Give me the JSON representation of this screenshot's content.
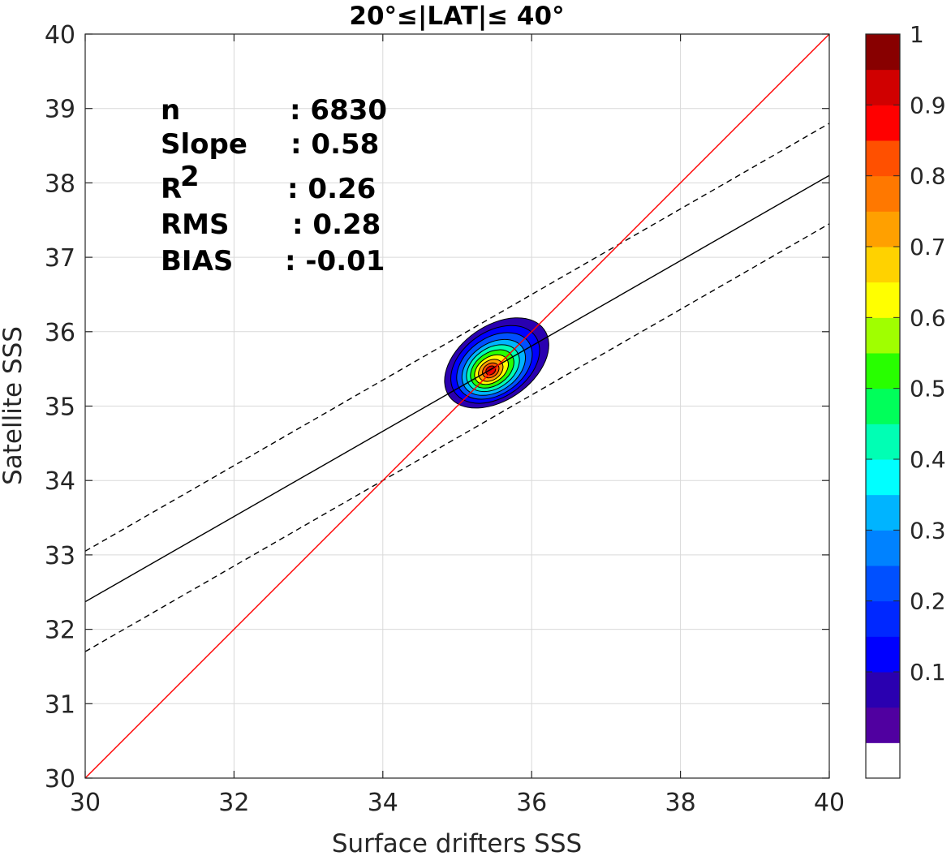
{
  "chart_data": {
    "type": "contour",
    "title": "20°≤|LAT|≤ 40°",
    "xlabel": "Surface drifters SSS",
    "ylabel": "Satellite SSS",
    "xlim": [
      30,
      40
    ],
    "ylim": [
      30,
      40
    ],
    "xticks": [
      "30",
      "32",
      "34",
      "36",
      "38",
      "40"
    ],
    "yticks": [
      "30",
      "31",
      "32",
      "33",
      "34",
      "35",
      "36",
      "37",
      "38",
      "39",
      "40"
    ],
    "grid": true,
    "stats": [
      {
        "label": "n",
        "value": ": 6830"
      },
      {
        "label": "Slope",
        "value": ": 0.58"
      },
      {
        "label": "R",
        "sup": "2",
        "value": ": 0.26"
      },
      {
        "label": "RMS",
        "value": ": 0.28"
      },
      {
        "label": "BIAS",
        "value": ": -0.01"
      }
    ],
    "lines": {
      "one_to_one": {
        "color": "#ff0000",
        "x": [
          30,
          40
        ],
        "y": [
          30,
          40
        ]
      },
      "fit": {
        "color": "#000000",
        "style": "solid",
        "x": [
          30,
          40
        ],
        "y": [
          32.37,
          38.1
        ]
      },
      "fit_upper": {
        "color": "#000000",
        "style": "dashed",
        "x": [
          30,
          40
        ],
        "y": [
          33.05,
          38.8
        ]
      },
      "fit_lower": {
        "color": "#000000",
        "style": "dashed",
        "x": [
          30,
          40
        ],
        "y": [
          31.7,
          37.45
        ]
      }
    },
    "density_contours": {
      "center": [
        35.45,
        35.48
      ],
      "rotation_deg": 35,
      "levels": [
        {
          "level": 0.05,
          "color": "#2a00b0",
          "a": 0.78,
          "b": 0.5,
          "dx": 0.08,
          "dy": 0.1
        },
        {
          "level": 0.1,
          "color": "#0000ff",
          "a": 0.66,
          "b": 0.44,
          "dx": 0.06,
          "dy": 0.08
        },
        {
          "level": 0.2,
          "color": "#0050ff",
          "a": 0.56,
          "b": 0.38,
          "dx": 0.05,
          "dy": 0.06
        },
        {
          "level": 0.3,
          "color": "#00b4ff",
          "a": 0.47,
          "b": 0.32,
          "dx": 0.04,
          "dy": 0.04
        },
        {
          "level": 0.4,
          "color": "#00ffb4",
          "a": 0.39,
          "b": 0.27,
          "dx": 0.03,
          "dy": 0.03
        },
        {
          "level": 0.5,
          "color": "#28ff00",
          "a": 0.32,
          "b": 0.22,
          "dx": 0.02,
          "dy": 0.02
        },
        {
          "level": 0.6,
          "color": "#ffff00",
          "a": 0.25,
          "b": 0.17,
          "dx": 0.01,
          "dy": 0.01
        },
        {
          "level": 0.7,
          "color": "#ffa000",
          "a": 0.18,
          "b": 0.13,
          "dx": 0.0,
          "dy": 0.0
        },
        {
          "level": 0.8,
          "color": "#ff5000",
          "a": 0.12,
          "b": 0.09,
          "dx": 0.0,
          "dy": 0.0
        },
        {
          "level": 0.9,
          "color": "#d00000",
          "a": 0.07,
          "b": 0.055,
          "dx": 0.0,
          "dy": 0.0
        }
      ]
    },
    "colorbar": {
      "ticks": [
        "0.1",
        "0.2",
        "0.3",
        "0.4",
        "0.5",
        "0.6",
        "0.7",
        "0.8",
        "0.9",
        "1"
      ],
      "tick_values": [
        0.1,
        0.2,
        0.3,
        0.4,
        0.5,
        0.6,
        0.7,
        0.8,
        0.9,
        1.0
      ],
      "colors": [
        "#ffffff",
        "#5000a0",
        "#2a00b0",
        "#0000ff",
        "#0028ff",
        "#0050ff",
        "#0082ff",
        "#00b4ff",
        "#00ffff",
        "#00ffb4",
        "#00ff5a",
        "#28ff00",
        "#a0ff00",
        "#ffff00",
        "#ffd200",
        "#ffa000",
        "#ff7800",
        "#ff5000",
        "#ff0000",
        "#d00000",
        "#880000"
      ]
    }
  }
}
